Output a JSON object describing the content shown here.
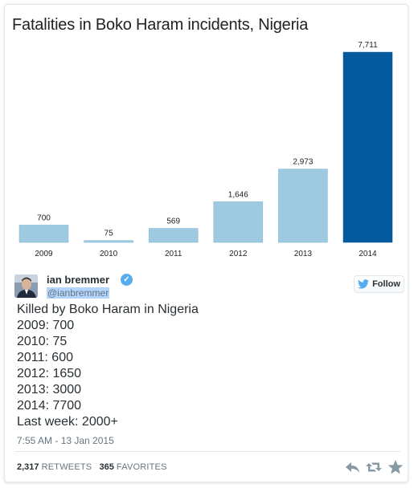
{
  "chart_data": {
    "type": "bar",
    "title": "Fatalities in Boko Haram incidents, Nigeria",
    "categories": [
      "2009",
      "2010",
      "2011",
      "2012",
      "2013",
      "2014"
    ],
    "values": [
      700,
      75,
      569,
      1646,
      2973,
      7711
    ],
    "value_labels": [
      "700",
      "75",
      "569",
      "1,646",
      "2,973",
      "7,711"
    ],
    "highlight_index": 5,
    "colors": {
      "bar": "#9ecae1",
      "highlight": "#045a9c",
      "bar_stroke": "#7fb2d0"
    },
    "ylim": [
      0,
      7711
    ],
    "grid": false,
    "legend": "none"
  },
  "tweet": {
    "display_name": "ian bremmer",
    "handle": "@ianbremmer",
    "verified_icon": "verified-badge-icon",
    "follow_label": "Follow",
    "lines": [
      "Killed by Boko Haram in Nigeria",
      "2009: 700",
      "2010: 75",
      "2011: 600",
      "2012: 1650",
      "2013: 3000",
      "2014: 7700",
      "Last week: 2000+"
    ],
    "timestamp": "7:55 AM - 13 Jan 2015",
    "retweets": "2,317",
    "retweets_label": "RETWEETS",
    "favorites": "365",
    "favorites_label": "FAVORITES",
    "accent": "#55acee"
  }
}
